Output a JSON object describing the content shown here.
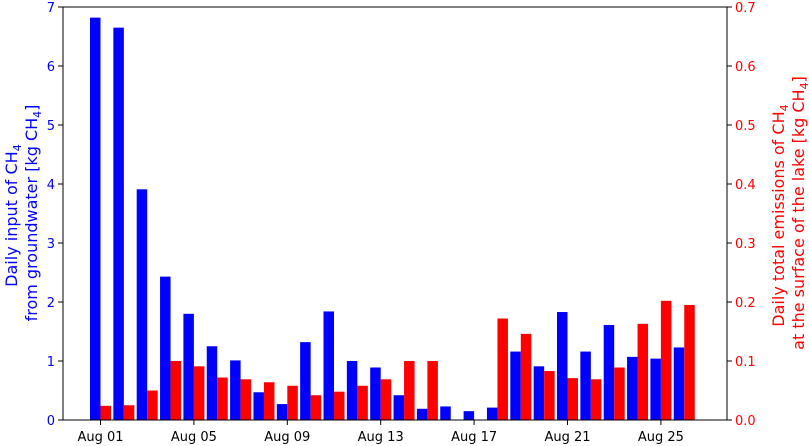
{
  "chart_data": {
    "type": "bar",
    "categories": [
      "Aug 01",
      "Aug 02",
      "Aug 03",
      "Aug 04",
      "Aug 05",
      "Aug 06",
      "Aug 07",
      "Aug 08",
      "Aug 09",
      "Aug 10",
      "Aug 11",
      "Aug 12",
      "Aug 13",
      "Aug 14",
      "Aug 15",
      "Aug 16",
      "Aug 17",
      "Aug 18",
      "Aug 19",
      "Aug 20",
      "Aug 21",
      "Aug 22",
      "Aug 23",
      "Aug 24",
      "Aug 25",
      "Aug 26"
    ],
    "x_tick_labels": [
      "Aug 01",
      "Aug 05",
      "Aug 09",
      "Aug 13",
      "Aug 17",
      "Aug 21",
      "Aug 25"
    ],
    "series": [
      {
        "axis": "left",
        "color": "#0000ff",
        "values": [
          6.82,
          6.65,
          3.91,
          2.43,
          1.8,
          1.25,
          1.01,
          0.47,
          0.27,
          1.32,
          1.84,
          1.0,
          0.89,
          0.42,
          0.19,
          0.23,
          0.15,
          0.21,
          1.16,
          0.91,
          1.83,
          1.16,
          1.61,
          1.07,
          1.04,
          1.23
        ]
      },
      {
        "axis": "right",
        "color": "#ff0000",
        "values": [
          0.024,
          0.025,
          0.05,
          0.1,
          0.091,
          0.072,
          0.069,
          0.064,
          0.058,
          0.042,
          0.048,
          0.058,
          0.069,
          0.1,
          0.1,
          0.0,
          0.0,
          0.172,
          0.146,
          0.083,
          0.071,
          0.069,
          0.089,
          0.163,
          0.202,
          0.195
        ]
      }
    ],
    "y_left": {
      "label_line1": "Daily input of CH",
      "label_sub": "4",
      "label_line2": "from groundwater [kg CH",
      "label_line2_sub": "4",
      "label_line2_end": "]",
      "ylim": [
        0,
        7
      ],
      "ticks": [
        "0",
        "1",
        "2",
        "3",
        "4",
        "5",
        "6",
        "7"
      ],
      "color": "#0000ff"
    },
    "y_right": {
      "label_line1": "Daily total emissions of CH",
      "label_sub": "4",
      "label_line2": "at the surface of the lake [kg CH",
      "label_line2_sub": "4",
      "label_line2_end": "]",
      "ylim": [
        0,
        0.7
      ],
      "ticks": [
        "0.0",
        "0.1",
        "0.2",
        "0.3",
        "0.4",
        "0.5",
        "0.6",
        "0.7"
      ],
      "color": "#ff0000"
    },
    "grid": false,
    "legend": "none"
  }
}
